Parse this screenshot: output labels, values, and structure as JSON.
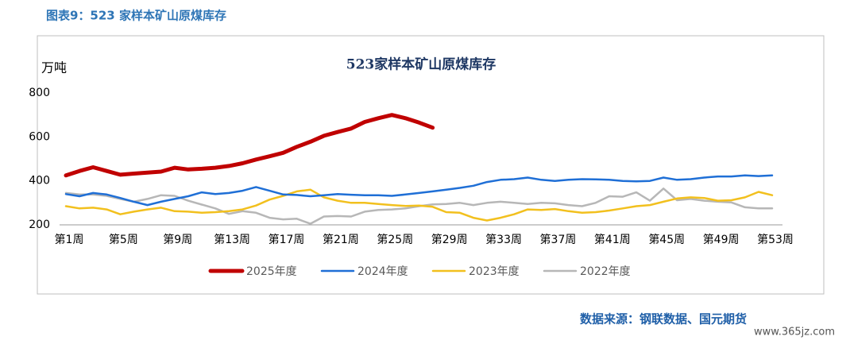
{
  "header": "图表9：523 家样本矿山原煤库存",
  "chart_data": {
    "type": "line",
    "title": "523家样本矿山原煤库存",
    "ylabel": "万吨",
    "categories": [
      "第1周",
      null,
      null,
      null,
      "第5周",
      null,
      null,
      null,
      "第9周",
      null,
      null,
      null,
      "第13周",
      null,
      null,
      null,
      "第17周",
      null,
      null,
      null,
      "第21周",
      null,
      null,
      null,
      "第25周",
      null,
      null,
      null,
      "第29周",
      null,
      null,
      null,
      "第33周",
      null,
      null,
      null,
      "第37周",
      null,
      null,
      null,
      "第41周",
      null,
      null,
      null,
      "第45周",
      null,
      null,
      null,
      "第49周",
      null,
      null,
      null,
      "第53周"
    ],
    "series": [
      {
        "name": "2025年度",
        "color": "#c00000",
        "values": [
          425,
          445,
          462,
          445,
          428,
          433,
          438,
          442,
          460,
          452,
          455,
          460,
          468,
          480,
          497,
          512,
          528,
          555,
          578,
          605,
          622,
          638,
          668,
          685,
          700,
          685,
          665,
          642,
          null,
          null,
          null,
          null,
          null,
          null,
          null,
          null,
          null,
          null,
          null,
          null,
          null,
          null,
          null,
          null,
          null,
          null,
          null,
          null,
          null,
          null,
          null,
          null,
          null
        ]
      },
      {
        "name": "2024年度",
        "color": "#1f6fd6",
        "values": [
          340,
          330,
          345,
          338,
          322,
          305,
          290,
          305,
          318,
          330,
          348,
          340,
          345,
          355,
          372,
          355,
          338,
          336,
          330,
          335,
          340,
          337,
          335,
          335,
          332,
          338,
          345,
          352,
          360,
          368,
          378,
          395,
          405,
          408,
          415,
          405,
          400,
          405,
          408,
          407,
          405,
          400,
          398,
          400,
          415,
          405,
          408,
          415,
          420,
          420,
          425,
          422,
          425
        ]
      },
      {
        "name": "2023年度",
        "color": "#f2c01e",
        "values": [
          285,
          275,
          278,
          270,
          248,
          260,
          270,
          278,
          262,
          260,
          255,
          258,
          262,
          270,
          288,
          315,
          332,
          352,
          360,
          325,
          310,
          300,
          300,
          295,
          290,
          286,
          288,
          282,
          258,
          255,
          232,
          220,
          232,
          248,
          270,
          268,
          272,
          262,
          255,
          258,
          265,
          275,
          285,
          290,
          305,
          320,
          325,
          322,
          310,
          312,
          325,
          350,
          335
        ]
      },
      {
        "name": "2022年度",
        "color": "#b7b7b7",
        "values": [
          345,
          338,
          338,
          332,
          318,
          305,
          318,
          335,
          332,
          310,
          292,
          275,
          250,
          262,
          255,
          232,
          225,
          228,
          205,
          238,
          240,
          238,
          260,
          268,
          270,
          275,
          285,
          293,
          295,
          300,
          290,
          300,
          305,
          300,
          295,
          300,
          298,
          290,
          285,
          300,
          330,
          328,
          348,
          310,
          365,
          312,
          318,
          310,
          305,
          302,
          280,
          275,
          275
        ]
      }
    ],
    "ylim": [
      200,
      800
    ],
    "yticks": [
      200,
      400,
      600,
      800
    ],
    "grid": false
  },
  "source": "数据来源：钢联数据、国元期货",
  "watermark": "www.365jz.com"
}
